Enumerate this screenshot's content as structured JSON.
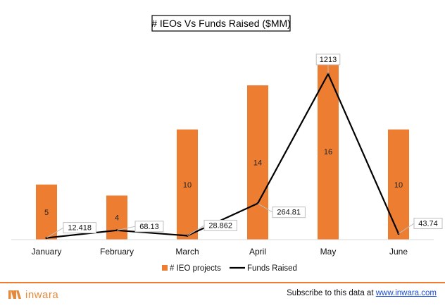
{
  "chart_data": {
    "type": "bar+line",
    "title": "# IEOs Vs Funds Raised ($MM)",
    "categories": [
      "January",
      "February",
      "March",
      "April",
      "May",
      "June"
    ],
    "series": [
      {
        "name": "# IEO projects",
        "kind": "bar",
        "color": "#ed7d31",
        "values": [
          5,
          4,
          10,
          14,
          16,
          10
        ],
        "labels": [
          "5",
          "4",
          "10",
          "14",
          "16",
          "10"
        ],
        "ylim": [
          0,
          16.5
        ]
      },
      {
        "name": "Funds Raised",
        "kind": "line",
        "color": "#000000",
        "values": [
          12.418,
          68.13,
          28.862,
          264.81,
          1213,
          43.74
        ],
        "labels": [
          "12.418",
          "68.13",
          "28.862",
          "264.81",
          "1213",
          "43.74"
        ],
        "ylim": [
          0,
          1300
        ]
      }
    ],
    "legend_position": "bottom",
    "grid": false
  },
  "footer": {
    "brand": "inwara",
    "subscribe_text": "Subscribe to this data at ",
    "subscribe_link": "www.inwara.com"
  }
}
